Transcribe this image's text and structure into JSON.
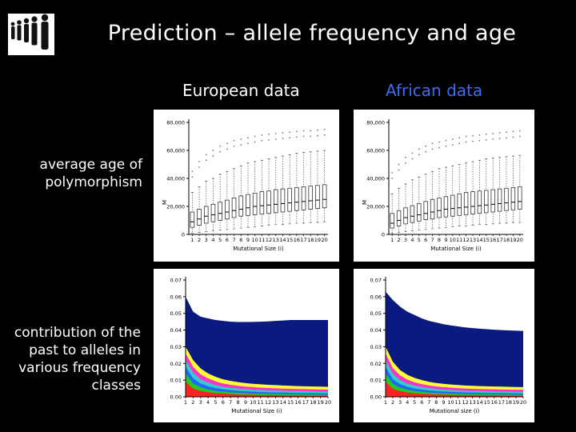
{
  "slide": {
    "title": "Prediction – allele frequency and age",
    "col_left": "European data",
    "col_right": "African data",
    "row_top_label": "average age of polymorphism",
    "row_bottom_label": "contribution of the past to alleles in various frequency classes"
  },
  "colors": {
    "background": "#000000",
    "right_header": "#3d6cf0",
    "area_top": "#0a1a80",
    "area_bands": [
      "#ffff33",
      "#ff33cc",
      "#33cccc",
      "#2266ff",
      "#22cc22",
      "#ff2222"
    ]
  },
  "chart_data": [
    {
      "type": "box",
      "panel": "european-box",
      "title": "",
      "xlabel": "Mutational Size (i)",
      "ylabel": "M",
      "x": [
        1,
        2,
        3,
        4,
        5,
        6,
        7,
        8,
        9,
        10,
        11,
        12,
        13,
        14,
        15,
        16,
        17,
        18,
        19,
        20
      ],
      "ylim": [
        0,
        80000
      ],
      "yticks": [
        "80,000",
        "60,000",
        "40,000",
        "20,000",
        "0"
      ],
      "median": [
        9000,
        11000,
        13000,
        14000,
        15000,
        16000,
        17000,
        18000,
        19000,
        20000,
        20500,
        21000,
        21500,
        22000,
        22500,
        23000,
        23500,
        24000,
        24500,
        25000
      ],
      "q1": [
        5000,
        6500,
        8000,
        9000,
        10000,
        11000,
        12000,
        13000,
        13500,
        14000,
        14500,
        15000,
        15500,
        16000,
        16500,
        17000,
        17500,
        18000,
        18500,
        19000
      ],
      "q3": [
        16000,
        18000,
        20000,
        21500,
        23000,
        24500,
        26000,
        27500,
        28500,
        29500,
        30500,
        31000,
        32000,
        32500,
        33000,
        33500,
        34000,
        34500,
        35000,
        35500
      ],
      "whisker_low": [
        1000,
        1500,
        2000,
        2500,
        3000,
        3500,
        4000,
        4500,
        5000,
        5500,
        6000,
        6500,
        7000,
        7000,
        7500,
        8000,
        8000,
        8500,
        8500,
        9000
      ],
      "whisker_high": [
        30000,
        34000,
        38000,
        40000,
        43000,
        45000,
        47000,
        49000,
        51000,
        52000,
        53000,
        54000,
        55000,
        56000,
        57000,
        58000,
        58500,
        59000,
        59500,
        60000
      ],
      "outlier_high": [
        45000,
        52000,
        57000,
        60000,
        63000,
        65000,
        67000,
        68000,
        69000,
        70000,
        71000,
        71500,
        72000,
        72500,
        73000,
        73500,
        74000,
        74000,
        74500,
        75000
      ]
    },
    {
      "type": "box",
      "panel": "african-box",
      "title": "",
      "xlabel": "Mutational Size (i)",
      "ylabel": "M",
      "x": [
        1,
        2,
        3,
        4,
        5,
        6,
        7,
        8,
        9,
        10,
        11,
        12,
        13,
        14,
        15,
        16,
        17,
        18,
        19,
        20
      ],
      "ylim": [
        0,
        80000
      ],
      "yticks": [
        "80,000",
        "60,000",
        "40,000",
        "20,000",
        "0"
      ],
      "median": [
        8000,
        10000,
        12000,
        13000,
        14000,
        15000,
        16000,
        17000,
        18000,
        18500,
        19000,
        19500,
        20000,
        20500,
        21000,
        21500,
        22000,
        22500,
        23000,
        23500
      ],
      "q1": [
        4500,
        6000,
        7500,
        8500,
        9500,
        10500,
        11000,
        12000,
        12500,
        13000,
        13500,
        14000,
        14500,
        15000,
        15500,
        16000,
        16500,
        17000,
        17500,
        18000
      ],
      "q3": [
        15000,
        17000,
        19000,
        20500,
        22000,
        23500,
        25000,
        26000,
        27000,
        28000,
        29000,
        30000,
        30500,
        31000,
        31500,
        32000,
        32500,
        33000,
        33500,
        34000
      ],
      "whisker_low": [
        1000,
        1500,
        2000,
        2500,
        3000,
        3500,
        4000,
        4500,
        5000,
        5500,
        6000,
        6000,
        6500,
        7000,
        7000,
        7500,
        8000,
        8000,
        8500,
        8500
      ],
      "whisker_high": [
        29000,
        33000,
        36000,
        39000,
        41000,
        43000,
        45000,
        47000,
        48000,
        49000,
        50000,
        51000,
        52000,
        53000,
        54000,
        54500,
        55000,
        55500,
        56000,
        56500
      ],
      "outlier_high": [
        44000,
        50000,
        55000,
        58000,
        61000,
        63000,
        65000,
        66000,
        67000,
        68000,
        69000,
        70000,
        70500,
        71000,
        71500,
        72000,
        72500,
        73000,
        73500,
        74000
      ]
    },
    {
      "type": "area",
      "panel": "european-area",
      "title": "",
      "xlabel": "Mutational Size (i)",
      "ylabel": "",
      "x": [
        1,
        2,
        3,
        4,
        5,
        6,
        7,
        8,
        9,
        10,
        11,
        12,
        13,
        14,
        15,
        16,
        17,
        18,
        19,
        20
      ],
      "ylim": [
        0,
        0.07
      ],
      "yticks": [
        "0.07",
        "0.06",
        "0.05",
        "0.04",
        "0.03",
        "0.02",
        "0.01",
        "0.00"
      ],
      "series": [
        {
          "values": [
            0.06,
            0.051,
            0.048,
            0.047,
            0.046,
            0.0455,
            0.045,
            0.0448,
            0.0448,
            0.0449,
            0.045,
            0.0452,
            0.0455,
            0.0457,
            0.046,
            0.046,
            0.046,
            0.046,
            0.046,
            0.046
          ]
        },
        {
          "values": [
            0.03,
            0.022,
            0.017,
            0.014,
            0.012,
            0.0105,
            0.0095,
            0.0088,
            0.0082,
            0.0078,
            0.0075,
            0.0072,
            0.007,
            0.0068,
            0.0066,
            0.0064,
            0.0063,
            0.0062,
            0.0061,
            0.006
          ]
        },
        {
          "values": [
            0.026,
            0.018,
            0.0135,
            0.011,
            0.0092,
            0.008,
            0.0072,
            0.0066,
            0.0061,
            0.0058,
            0.0055,
            0.0053,
            0.0051,
            0.0049,
            0.0048,
            0.0047,
            0.0046,
            0.0045,
            0.0044,
            0.0043
          ]
        },
        {
          "values": [
            0.022,
            0.0145,
            0.0105,
            0.0085,
            0.007,
            0.006,
            0.0054,
            0.0049,
            0.0045,
            0.0042,
            0.004,
            0.0038,
            0.0037,
            0.0036,
            0.0035,
            0.0034,
            0.0033,
            0.0032,
            0.0031,
            0.003
          ]
        },
        {
          "values": [
            0.018,
            0.011,
            0.008,
            0.0063,
            0.0052,
            0.0045,
            0.004,
            0.0036,
            0.0033,
            0.0031,
            0.0029,
            0.0027,
            0.0026,
            0.0025,
            0.0024,
            0.0023,
            0.0022,
            0.0022,
            0.0021,
            0.0021
          ]
        },
        {
          "values": [
            0.014,
            0.008,
            0.0057,
            0.0044,
            0.0036,
            0.0031,
            0.0027,
            0.0024,
            0.0022,
            0.002,
            0.0019,
            0.0018,
            0.0017,
            0.0016,
            0.0015,
            0.0015,
            0.0014,
            0.0014,
            0.0013,
            0.0013
          ]
        },
        {
          "values": [
            0.009,
            0.005,
            0.0035,
            0.0027,
            0.0022,
            0.0019,
            0.0016,
            0.0014,
            0.0013,
            0.0012,
            0.0011,
            0.001,
            0.001,
            0.0009,
            0.0009,
            0.0009,
            0.0008,
            0.0008,
            0.0008,
            0.0008
          ]
        }
      ]
    },
    {
      "type": "area",
      "panel": "african-area",
      "title": "",
      "xlabel": "Mutational size (i)",
      "ylabel": "",
      "x": [
        1,
        2,
        3,
        4,
        5,
        6,
        7,
        8,
        9,
        10,
        11,
        12,
        13,
        14,
        15,
        16,
        17,
        18,
        19,
        20
      ],
      "ylim": [
        0,
        0.07
      ],
      "yticks": [
        "0.07",
        "0.06",
        "0.05",
        "0.04",
        "0.03",
        "0.02",
        "0.01",
        "0.00"
      ],
      "series": [
        {
          "values": [
            0.063,
            0.058,
            0.054,
            0.051,
            0.049,
            0.047,
            0.0455,
            0.0445,
            0.0435,
            0.0428,
            0.0422,
            0.0416,
            0.0412,
            0.0408,
            0.0405,
            0.0402,
            0.04,
            0.0398,
            0.0396,
            0.0395
          ]
        },
        {
          "values": [
            0.03,
            0.021,
            0.016,
            0.0132,
            0.0113,
            0.01,
            0.009,
            0.0083,
            0.0078,
            0.0074,
            0.0071,
            0.0068,
            0.0066,
            0.0064,
            0.0063,
            0.0062,
            0.0061,
            0.006,
            0.0059,
            0.0058
          ]
        },
        {
          "values": [
            0.026,
            0.0172,
            0.0128,
            0.0103,
            0.0087,
            0.0076,
            0.0068,
            0.0062,
            0.0058,
            0.0055,
            0.0052,
            0.005,
            0.0048,
            0.0047,
            0.0046,
            0.0045,
            0.0044,
            0.0043,
            0.0042,
            0.0042
          ]
        },
        {
          "values": [
            0.022,
            0.0138,
            0.01,
            0.008,
            0.0067,
            0.0058,
            0.0052,
            0.0047,
            0.0043,
            0.004,
            0.0038,
            0.0036,
            0.0035,
            0.0034,
            0.0033,
            0.0032,
            0.0031,
            0.003,
            0.003,
            0.0029
          ]
        },
        {
          "values": [
            0.018,
            0.0105,
            0.0076,
            0.006,
            0.005,
            0.0043,
            0.0038,
            0.0034,
            0.0032,
            0.003,
            0.0028,
            0.0026,
            0.0025,
            0.0024,
            0.0023,
            0.0022,
            0.0022,
            0.0021,
            0.0021,
            0.002
          ]
        },
        {
          "values": [
            0.014,
            0.0077,
            0.0055,
            0.0043,
            0.0035,
            0.003,
            0.0026,
            0.0023,
            0.0021,
            0.002,
            0.0018,
            0.0017,
            0.0016,
            0.0016,
            0.0015,
            0.0015,
            0.0014,
            0.0014,
            0.0013,
            0.0013
          ]
        },
        {
          "values": [
            0.009,
            0.0048,
            0.0034,
            0.0026,
            0.0021,
            0.0018,
            0.0016,
            0.0014,
            0.0013,
            0.0012,
            0.0011,
            0.001,
            0.001,
            0.0009,
            0.0009,
            0.0009,
            0.0008,
            0.0008,
            0.0008,
            0.0008
          ]
        }
      ]
    }
  ]
}
